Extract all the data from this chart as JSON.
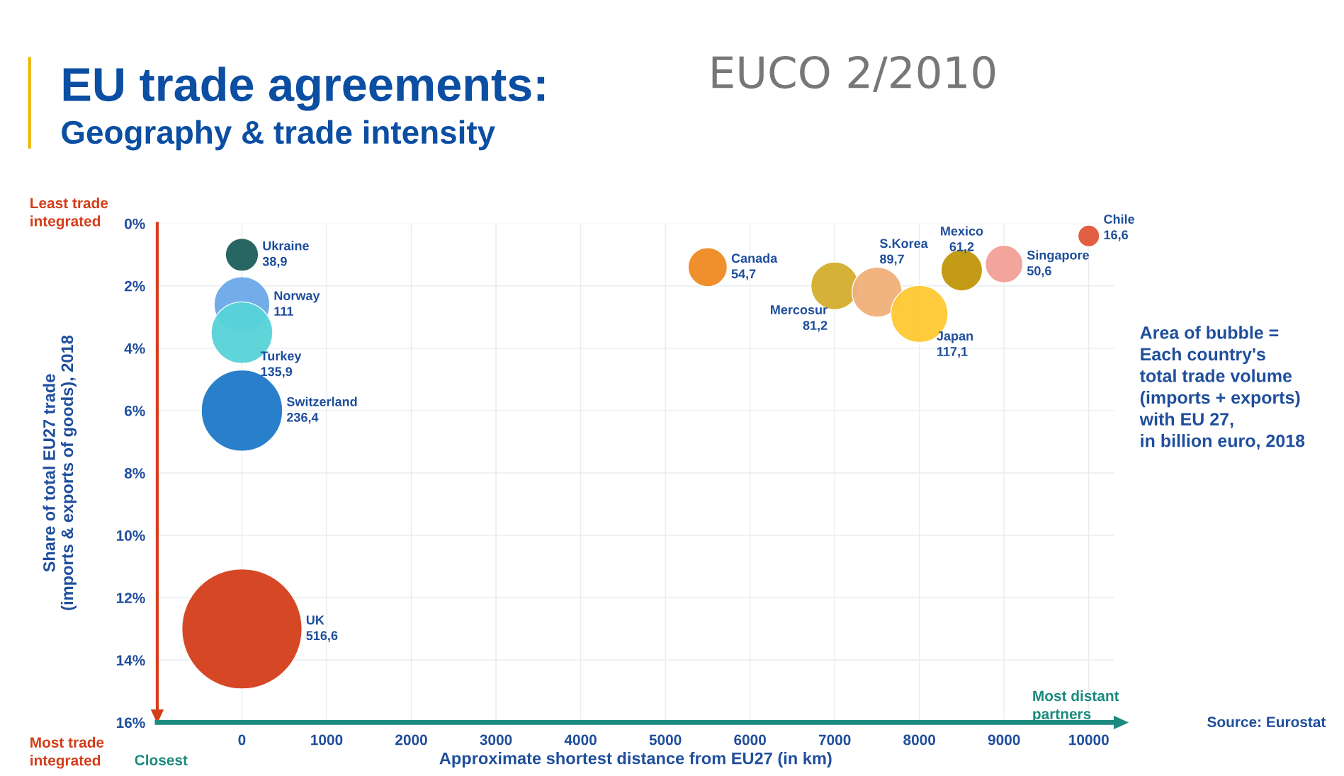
{
  "chart_data": {
    "type": "bubble",
    "title": "EU trade agreements:",
    "subtitle": "Geography & trade intensity",
    "xlabel": "Approximate shortest distance from EU27 (in km)",
    "ylabel": "Share of total EU27 trade\n(imports & exports of goods), 2018",
    "xlim": [
      -1000,
      10300
    ],
    "xticks": [
      0,
      1000,
      2000,
      3000,
      4000,
      5000,
      6000,
      7000,
      8000,
      9000,
      10000
    ],
    "ylim": [
      16,
      0
    ],
    "yticks": [
      {
        "value": 0,
        "label": "0%"
      },
      {
        "value": 2,
        "label": "2%"
      },
      {
        "value": 4,
        "label": "4%"
      },
      {
        "value": 6,
        "label": "6%"
      },
      {
        "value": 8,
        "label": "8%"
      },
      {
        "value": 10,
        "label": "10%"
      },
      {
        "value": 12,
        "label": "12%"
      },
      {
        "value": 14,
        "label": "14%"
      },
      {
        "value": 16,
        "label": "16%"
      }
    ],
    "grid": true,
    "legend": false,
    "series": [
      {
        "name": "Ukraine",
        "color": "#1b5e5a",
        "x": [
          0
        ],
        "values": [
          1.0
        ],
        "sizes": [
          38.9
        ],
        "value_labels": [
          "38,9"
        ]
      },
      {
        "name": "Norway",
        "color": "#6aa9e8",
        "x": [
          0
        ],
        "values": [
          2.6
        ],
        "sizes": [
          111
        ],
        "value_labels": [
          "111"
        ]
      },
      {
        "name": "Turkey",
        "color": "#56d3d8",
        "x": [
          0
        ],
        "values": [
          3.5
        ],
        "sizes": [
          135.9
        ],
        "value_labels": [
          "135,9"
        ]
      },
      {
        "name": "Switzerland",
        "color": "#1f78c8",
        "x": [
          0
        ],
        "values": [
          6.0
        ],
        "sizes": [
          236.4
        ],
        "value_labels": [
          "236,4"
        ]
      },
      {
        "name": "UK",
        "color": "#d43d1a",
        "x": [
          0
        ],
        "values": [
          13.0
        ],
        "sizes": [
          516.6
        ],
        "value_labels": [
          "516,6"
        ]
      },
      {
        "name": "Canada",
        "color": "#ef8a22",
        "x": [
          5500
        ],
        "values": [
          1.4
        ],
        "sizes": [
          54.7
        ],
        "value_labels": [
          "54,7"
        ]
      },
      {
        "name": "Mercosur",
        "color": "#d4ad2c",
        "x": [
          7000
        ],
        "values": [
          2.0
        ],
        "sizes": [
          81.2
        ],
        "value_labels": [
          "81,2"
        ]
      },
      {
        "name": "S.Korea",
        "color": "#f0b07a",
        "x": [
          7500
        ],
        "values": [
          2.2
        ],
        "sizes": [
          89.7
        ],
        "value_labels": [
          "89,7"
        ]
      },
      {
        "name": "Japan",
        "color": "#fdc832",
        "x": [
          8000
        ],
        "values": [
          2.9
        ],
        "sizes": [
          117.1
        ],
        "value_labels": [
          "117,1"
        ]
      },
      {
        "name": "Mexico",
        "color": "#c1960a",
        "x": [
          8500
        ],
        "values": [
          1.5
        ],
        "sizes": [
          61.2
        ],
        "value_labels": [
          "61,2"
        ]
      },
      {
        "name": "Singapore",
        "color": "#f2a096",
        "x": [
          9000
        ],
        "values": [
          1.3
        ],
        "sizes": [
          50.6
        ],
        "value_labels": [
          "50,6"
        ]
      },
      {
        "name": "Chile",
        "color": "#e0563a",
        "x": [
          10000
        ],
        "values": [
          0.4
        ],
        "sizes": [
          16.6
        ],
        "value_labels": [
          "16,6"
        ]
      }
    ],
    "annotations": [
      "EUCO 2/2010",
      "Least trade\nintegrated",
      "Most trade\nintegrated",
      "Closest",
      "Most distant\npartners",
      "Area of bubble =\nEach country's\ntotal trade volume\n(imports + exports)\nwith EU 27,\nin billion euro, 2018",
      "Source: Eurostat"
    ]
  }
}
